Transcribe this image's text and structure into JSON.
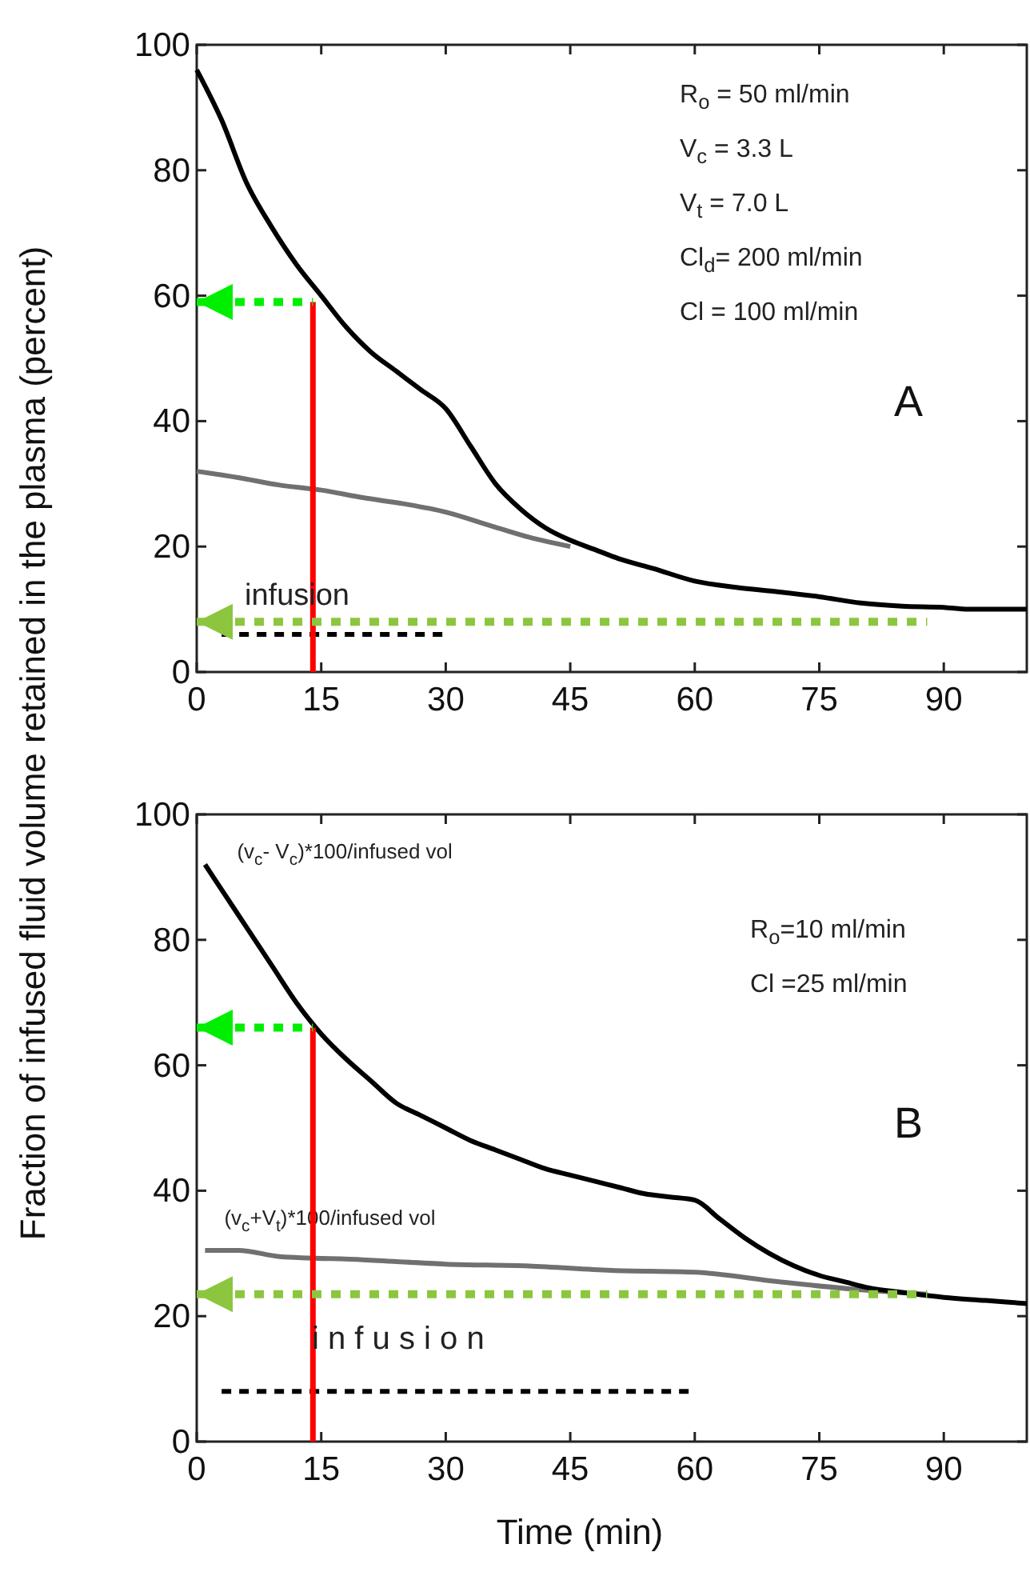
{
  "chart_data": [
    {
      "type": "line",
      "title": "A",
      "ylabel": "Fraction of infused fluid volume retained in the plasma (percent)",
      "xlim": [
        0,
        100
      ],
      "ylim": [
        0,
        100
      ],
      "xticks": [
        0,
        15,
        30,
        45,
        60,
        75,
        90
      ],
      "yticks": [
        0,
        20,
        40,
        60,
        80,
        100
      ],
      "grid": false,
      "annotations": [
        "R$_{o}$ = 50 ml/min",
        "V$_{c}$ = 3.3 L",
        "V$_{t}$ = 7.0 L",
        "Cl$_{d}$= 200 ml/min",
        "Cl = 100 ml/min",
        "infusion"
      ],
      "series": [
        {
          "color": "#707070",
          "x": [
            0,
            5,
            10,
            15,
            20,
            25,
            30,
            35,
            40,
            45
          ],
          "values": [
            32,
            31,
            29.8,
            29,
            27.8,
            26.8,
            25.5,
            23.5,
            21.5,
            20
          ]
        },
        {
          "color": "#000000",
          "x": [
            0,
            3,
            6,
            9,
            12,
            15,
            18,
            21,
            24,
            27,
            30,
            33,
            36,
            39,
            42,
            45,
            48,
            51,
            55,
            60,
            65,
            70,
            75,
            80,
            85,
            90,
            93,
            100
          ],
          "values": [
            96,
            88,
            78,
            71,
            65,
            60,
            55,
            51,
            48,
            45,
            42,
            36,
            30,
            26,
            23,
            21,
            19.5,
            18,
            16.5,
            14.5,
            13.5,
            12.8,
            12,
            11,
            10.5,
            10.3,
            10,
            10
          ]
        },
        {
          "color": "#000000",
          "line_style": "dashed",
          "x": [
            3,
            30
          ],
          "values": [
            6,
            6
          ]
        },
        {
          "color": "#ff0000",
          "x": [
            14,
            14
          ],
          "values": [
            0,
            59
          ]
        },
        {
          "color": "#00ee00",
          "line_style": "dotted",
          "x": [
            0,
            14
          ],
          "values": [
            59,
            59
          ]
        },
        {
          "color": "#8cc63f",
          "line_style": "dotted",
          "x": [
            0,
            88
          ],
          "values": [
            8,
            8
          ]
        }
      ]
    },
    {
      "type": "line",
      "title": "B",
      "xlabel": "Time (min)",
      "xlim": [
        0,
        100
      ],
      "ylim": [
        0,
        100
      ],
      "xticks": [
        0,
        15,
        30,
        45,
        60,
        75,
        90
      ],
      "yticks": [
        0,
        20,
        40,
        60,
        80,
        100
      ],
      "grid": false,
      "annotations": [
        "R$_{o}$=10 ml/min",
        "Cl =25 ml/min",
        "i n f u s i o n"
      ],
      "series": [
        {
          "name": "(v$_{c}$+V$_{t}$)*100/infused vol",
          "color": "#707070",
          "x": [
            1,
            5,
            10,
            20,
            30,
            40,
            50,
            60,
            70,
            80,
            88
          ],
          "values": [
            30.5,
            30.5,
            29.5,
            29,
            28.3,
            28,
            27.3,
            27,
            25.5,
            24.2,
            23.5
          ]
        },
        {
          "name": "(v$_{c}$- V$_{c}$)*100/infused vol",
          "color": "#000000",
          "x": [
            1,
            3,
            6,
            9,
            12,
            15,
            18,
            21,
            24,
            27,
            30,
            33,
            36,
            39,
            42,
            45,
            48,
            51,
            54,
            57,
            60,
            63,
            66,
            69,
            72,
            75,
            78,
            81,
            85,
            90,
            95,
            100
          ],
          "values": [
            92,
            88,
            82,
            76,
            70,
            65,
            61,
            57.5,
            54,
            52,
            50,
            48,
            46.5,
            45,
            43.5,
            42.5,
            41.5,
            40.5,
            39.5,
            39,
            38.5,
            35.5,
            32.5,
            30,
            28,
            26.5,
            25.5,
            24.5,
            23.8,
            23,
            22.5,
            22
          ]
        },
        {
          "color": "#000000",
          "line_style": "dashed",
          "x": [
            3,
            60
          ],
          "values": [
            8,
            8
          ]
        },
        {
          "color": "#ff0000",
          "x": [
            14,
            14
          ],
          "values": [
            0,
            66
          ]
        },
        {
          "color": "#00ee00",
          "line_style": "dotted",
          "x": [
            0,
            14
          ],
          "values": [
            66,
            66
          ]
        },
        {
          "color": "#8cc63f",
          "line_style": "dotted",
          "x": [
            0,
            88
          ],
          "values": [
            23.5,
            23.5
          ]
        }
      ]
    }
  ]
}
